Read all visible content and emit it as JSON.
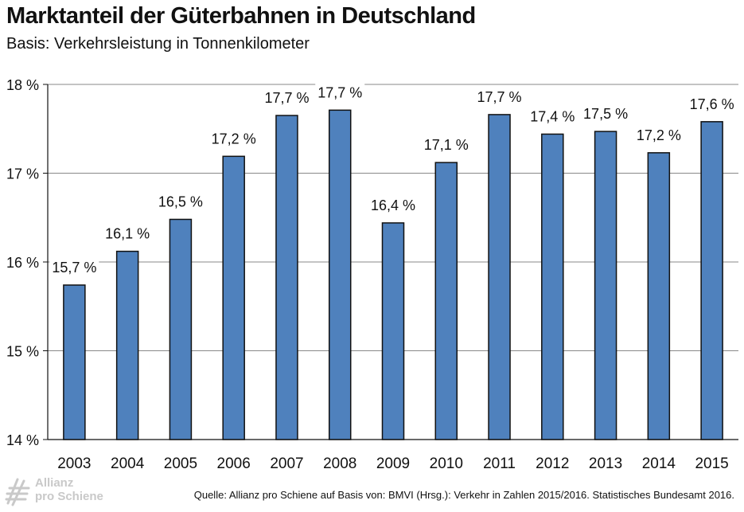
{
  "title": "Marktanteil der Güterbahnen in Deutschland",
  "subtitle": "Basis: Verkehrsleistung in Tonnenkilometer",
  "source": "Quelle: Allianz pro Schiene auf Basis von: BMVI (Hrsg.): Verkehr in Zahlen 2015/2016. Statistisches Bundesamt 2016.",
  "logo": {
    "line1": "Allianz",
    "line2": "pro Schiene",
    "icon": "rail-logo-icon"
  },
  "colors": {
    "bar": "#4f81bd",
    "bar_stroke": "#111111",
    "grid": "#888888",
    "axis": "#111111",
    "logo": "#c9c9c9"
  },
  "chart_data": {
    "type": "bar",
    "categories": [
      "2003",
      "2004",
      "2005",
      "2006",
      "2007",
      "2008",
      "2009",
      "2010",
      "2011",
      "2012",
      "2013",
      "2014",
      "2015"
    ],
    "values": [
      15.74,
      16.12,
      16.48,
      17.19,
      17.65,
      17.71,
      16.44,
      17.12,
      17.66,
      17.44,
      17.47,
      17.23,
      17.58
    ],
    "data_labels": [
      "15,7 %",
      "16,1 %",
      "16,5 %",
      "17,2 %",
      "17,7 %",
      "17,7 %",
      "16,4 %",
      "17,1 %",
      "17,7 %",
      "17,4 %",
      "17,5 %",
      "17,2 %",
      "17,6 %"
    ],
    "ylim": [
      14,
      18
    ],
    "yticks": [
      14,
      15,
      16,
      17,
      18
    ],
    "ytick_labels": [
      "14 %",
      "15 %",
      "16 %",
      "17 %",
      "18 %"
    ],
    "xlabel": "",
    "ylabel": "",
    "grid": true,
    "legend": "none"
  }
}
